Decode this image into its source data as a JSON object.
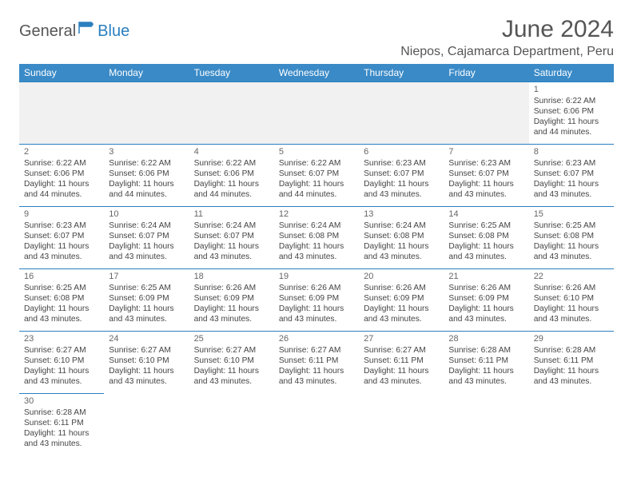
{
  "logo": {
    "text1": "General",
    "text2": "Blue",
    "flag_color": "#2a7fbf"
  },
  "title": "June 2024",
  "location": "Niepos, Cajamarca Department, Peru",
  "colors": {
    "header_bg": "#3a8ac7",
    "header_text": "#ffffff",
    "rule": "#2a7fbf",
    "spacer_bg": "#f1f1f1",
    "body_text": "#444444",
    "title_text": "#555555"
  },
  "weekdays": [
    "Sunday",
    "Monday",
    "Tuesday",
    "Wednesday",
    "Thursday",
    "Friday",
    "Saturday"
  ],
  "grid": [
    [
      null,
      null,
      null,
      null,
      null,
      null,
      {
        "n": "1",
        "sunrise": "6:22 AM",
        "sunset": "6:06 PM",
        "daylight": "11 hours and 44 minutes."
      }
    ],
    [
      {
        "n": "2",
        "sunrise": "6:22 AM",
        "sunset": "6:06 PM",
        "daylight": "11 hours and 44 minutes."
      },
      {
        "n": "3",
        "sunrise": "6:22 AM",
        "sunset": "6:06 PM",
        "daylight": "11 hours and 44 minutes."
      },
      {
        "n": "4",
        "sunrise": "6:22 AM",
        "sunset": "6:06 PM",
        "daylight": "11 hours and 44 minutes."
      },
      {
        "n": "5",
        "sunrise": "6:22 AM",
        "sunset": "6:07 PM",
        "daylight": "11 hours and 44 minutes."
      },
      {
        "n": "6",
        "sunrise": "6:23 AM",
        "sunset": "6:07 PM",
        "daylight": "11 hours and 43 minutes."
      },
      {
        "n": "7",
        "sunrise": "6:23 AM",
        "sunset": "6:07 PM",
        "daylight": "11 hours and 43 minutes."
      },
      {
        "n": "8",
        "sunrise": "6:23 AM",
        "sunset": "6:07 PM",
        "daylight": "11 hours and 43 minutes."
      }
    ],
    [
      {
        "n": "9",
        "sunrise": "6:23 AM",
        "sunset": "6:07 PM",
        "daylight": "11 hours and 43 minutes."
      },
      {
        "n": "10",
        "sunrise": "6:24 AM",
        "sunset": "6:07 PM",
        "daylight": "11 hours and 43 minutes."
      },
      {
        "n": "11",
        "sunrise": "6:24 AM",
        "sunset": "6:07 PM",
        "daylight": "11 hours and 43 minutes."
      },
      {
        "n": "12",
        "sunrise": "6:24 AM",
        "sunset": "6:08 PM",
        "daylight": "11 hours and 43 minutes."
      },
      {
        "n": "13",
        "sunrise": "6:24 AM",
        "sunset": "6:08 PM",
        "daylight": "11 hours and 43 minutes."
      },
      {
        "n": "14",
        "sunrise": "6:25 AM",
        "sunset": "6:08 PM",
        "daylight": "11 hours and 43 minutes."
      },
      {
        "n": "15",
        "sunrise": "6:25 AM",
        "sunset": "6:08 PM",
        "daylight": "11 hours and 43 minutes."
      }
    ],
    [
      {
        "n": "16",
        "sunrise": "6:25 AM",
        "sunset": "6:08 PM",
        "daylight": "11 hours and 43 minutes."
      },
      {
        "n": "17",
        "sunrise": "6:25 AM",
        "sunset": "6:09 PM",
        "daylight": "11 hours and 43 minutes."
      },
      {
        "n": "18",
        "sunrise": "6:26 AM",
        "sunset": "6:09 PM",
        "daylight": "11 hours and 43 minutes."
      },
      {
        "n": "19",
        "sunrise": "6:26 AM",
        "sunset": "6:09 PM",
        "daylight": "11 hours and 43 minutes."
      },
      {
        "n": "20",
        "sunrise": "6:26 AM",
        "sunset": "6:09 PM",
        "daylight": "11 hours and 43 minutes."
      },
      {
        "n": "21",
        "sunrise": "6:26 AM",
        "sunset": "6:09 PM",
        "daylight": "11 hours and 43 minutes."
      },
      {
        "n": "22",
        "sunrise": "6:26 AM",
        "sunset": "6:10 PM",
        "daylight": "11 hours and 43 minutes."
      }
    ],
    [
      {
        "n": "23",
        "sunrise": "6:27 AM",
        "sunset": "6:10 PM",
        "daylight": "11 hours and 43 minutes."
      },
      {
        "n": "24",
        "sunrise": "6:27 AM",
        "sunset": "6:10 PM",
        "daylight": "11 hours and 43 minutes."
      },
      {
        "n": "25",
        "sunrise": "6:27 AM",
        "sunset": "6:10 PM",
        "daylight": "11 hours and 43 minutes."
      },
      {
        "n": "26",
        "sunrise": "6:27 AM",
        "sunset": "6:11 PM",
        "daylight": "11 hours and 43 minutes."
      },
      {
        "n": "27",
        "sunrise": "6:27 AM",
        "sunset": "6:11 PM",
        "daylight": "11 hours and 43 minutes."
      },
      {
        "n": "28",
        "sunrise": "6:28 AM",
        "sunset": "6:11 PM",
        "daylight": "11 hours and 43 minutes."
      },
      {
        "n": "29",
        "sunrise": "6:28 AM",
        "sunset": "6:11 PM",
        "daylight": "11 hours and 43 minutes."
      }
    ],
    [
      {
        "n": "30",
        "sunrise": "6:28 AM",
        "sunset": "6:11 PM",
        "daylight": "11 hours and 43 minutes."
      },
      null,
      null,
      null,
      null,
      null,
      null
    ]
  ],
  "labels": {
    "sunrise": "Sunrise:",
    "sunset": "Sunset:",
    "daylight": "Daylight:"
  }
}
